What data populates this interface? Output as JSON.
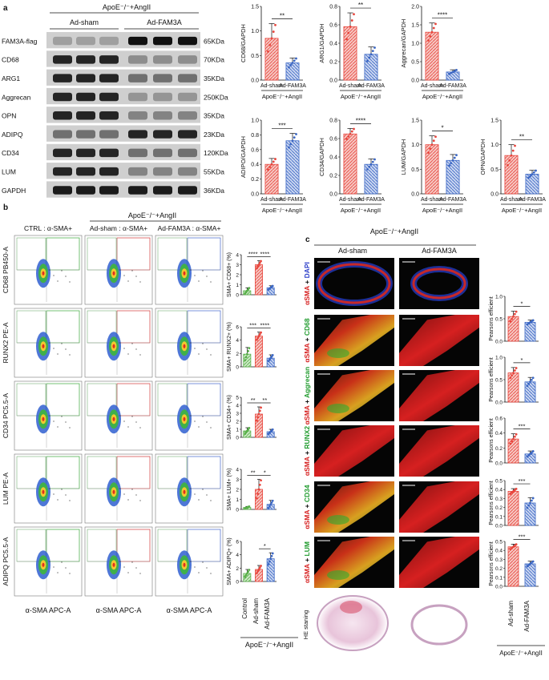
{
  "panel_a": {
    "letter": "a",
    "group_header": "ApoE⁻/⁻+AngII",
    "lanes": [
      "Ad-sham",
      "Ad-FAM3A"
    ],
    "bands": [
      {
        "name": "FAM3A-flag",
        "kda": "65KDa"
      },
      {
        "name": "CD68",
        "kda": "70KDa"
      },
      {
        "name": "ARG1",
        "kda": "35KDa"
      },
      {
        "name": "Aggrecan",
        "kda": "250KDa"
      },
      {
        "name": "OPN",
        "kda": "35KDa"
      },
      {
        "name": "ADIPQ",
        "kda": "23KDa"
      },
      {
        "name": "CD34",
        "kda": "120KDa"
      },
      {
        "name": "LUM",
        "kda": "55KDa"
      },
      {
        "name": "GAPDH",
        "kda": "36KDa"
      }
    ]
  },
  "panel_b": {
    "letter": "b",
    "header": "ApoE⁻/⁻+AngII",
    "col_titles": [
      "CTRL : α-SMA+",
      "Ad-sham : α-SMA+",
      "Ad-FAM3A : α-SMA+"
    ],
    "row_labels": [
      "CD68 PB450-A",
      "RUNX2 PE-A",
      "CD34 PC5.5-A",
      "LUM PE-A",
      "ADIPQ PC5.5-A"
    ],
    "x_label": "α-SMA APC-A",
    "footer": "ApoE⁻/⁻+AngII",
    "categories": [
      "Control",
      "Ad-sham",
      "Ad-FAM3A"
    ]
  },
  "panel_c": {
    "letter": "c",
    "header": "ApoE⁻/⁻+AngII",
    "cols": [
      "Ad-sham",
      "Ad-FAM3A"
    ],
    "row_labels": [
      {
        "red": "αSMA",
        "other": "DAPI",
        "other_color": "#2a3cc8"
      },
      {
        "red": "αSMA",
        "other": "CD68",
        "other_color": "#1e9a2c"
      },
      {
        "red": "αSMA",
        "other": "Aggrecan",
        "other_color": "#1e9a2c"
      },
      {
        "red": "αSMA",
        "other": "RUNX2",
        "other_color": "#1e9a2c"
      },
      {
        "red": "αSMA",
        "other": "CD34",
        "other_color": "#1e9a2c"
      },
      {
        "red": "αSMA",
        "other": "LUM",
        "other_color": "#1e9a2c"
      }
    ],
    "he_label": "HE staning",
    "footer": "ApoE⁻/⁻+AngII",
    "bar_categories": [
      "Ad-sham",
      "Ad-FAM3A"
    ]
  },
  "colors": {
    "sham": "#e8453c",
    "fam3a": "#3a66c4",
    "control": "#59b04a"
  },
  "chart_data": [
    {
      "type": "bar",
      "panel": "a",
      "ylabel": "CD68/GAPDH",
      "categories": [
        "Ad-sham",
        "Ad-FAM3A"
      ],
      "values": [
        0.85,
        0.35
      ],
      "errors": [
        0.3,
        0.1
      ],
      "ylim": [
        0,
        1.5
      ],
      "ticks": [
        "0.0",
        "0.5",
        "1.0",
        "1.5"
      ],
      "sig": "**",
      "xlabel": "ApoE⁻/⁻+AngII"
    },
    {
      "type": "bar",
      "panel": "a",
      "ylabel": "ARG1/GAPDH",
      "categories": [
        "Ad-sham",
        "Ad-FAM3A"
      ],
      "values": [
        0.58,
        0.28
      ],
      "errors": [
        0.15,
        0.08
      ],
      "ylim": [
        0,
        0.8
      ],
      "ticks": [
        "0.0",
        "0.2",
        "0.4",
        "0.6",
        "0.8"
      ],
      "sig": "**",
      "xlabel": "ApoE⁻/⁻+AngII"
    },
    {
      "type": "bar",
      "panel": "a",
      "ylabel": "Aggrecan/GAPDH",
      "categories": [
        "Ad-sham",
        "Ad-FAM3A"
      ],
      "values": [
        1.3,
        0.22
      ],
      "errors": [
        0.25,
        0.06
      ],
      "ylim": [
        0,
        2.0
      ],
      "ticks": [
        "0.0",
        "0.5",
        "1.0",
        "1.5",
        "2.0"
      ],
      "sig": "****",
      "xlabel": "ApoE⁻/⁻+AngII"
    },
    {
      "type": "bar",
      "panel": "a",
      "ylabel": "ADIPO/GAPDH",
      "categories": [
        "Ad-sham",
        "Ad-FAM3A"
      ],
      "values": [
        0.4,
        0.72
      ],
      "errors": [
        0.08,
        0.1
      ],
      "ylim": [
        0,
        1.0
      ],
      "ticks": [
        "0.0",
        "0.2",
        "0.4",
        "0.6",
        "0.8",
        "1.0"
      ],
      "sig": "***",
      "xlabel": "ApoE⁻/⁻+AngII"
    },
    {
      "type": "bar",
      "panel": "a",
      "ylabel": "CD34/GAPDH",
      "categories": [
        "Ad-sham",
        "Ad-FAM3A"
      ],
      "values": [
        0.65,
        0.32
      ],
      "errors": [
        0.06,
        0.06
      ],
      "ylim": [
        0,
        0.8
      ],
      "ticks": [
        "0.0",
        "0.2",
        "0.4",
        "0.6",
        "0.8"
      ],
      "sig": "****",
      "xlabel": "ApoE⁻/⁻+AngII"
    },
    {
      "type": "bar",
      "panel": "a",
      "ylabel": "LUM/GAPDH",
      "categories": [
        "Ad-sham",
        "Ad-FAM3A"
      ],
      "values": [
        1.0,
        0.68
      ],
      "errors": [
        0.18,
        0.12
      ],
      "ylim": [
        0,
        1.5
      ],
      "ticks": [
        "0.0",
        "0.5",
        "1.0",
        "1.5"
      ],
      "sig": "*",
      "xlabel": "ApoE⁻/⁻+AngII"
    },
    {
      "type": "bar",
      "panel": "a",
      "ylabel": "OPN/GAPDH",
      "categories": [
        "Ad-sham",
        "Ad-FAM3A"
      ],
      "values": [
        0.78,
        0.4
      ],
      "errors": [
        0.22,
        0.08
      ],
      "ylim": [
        0,
        1.5
      ],
      "ticks": [
        "0.0",
        "0.5",
        "1.0",
        "1.5"
      ],
      "sig": "**",
      "xlabel": "ApoE⁻/⁻+AngII"
    },
    {
      "type": "bar",
      "panel": "b",
      "ylabel": "SMA+ CD68+ (%)",
      "categories": [
        "Control",
        "Ad-sham",
        "Ad-FAM3A"
      ],
      "values": [
        0.4,
        3.0,
        0.7
      ],
      "errors": [
        0.3,
        0.4,
        0.2
      ],
      "ylim": [
        0,
        4
      ],
      "ticks": [
        "0",
        "1",
        "2",
        "3",
        "4"
      ],
      "sigs": [
        "****",
        "****"
      ]
    },
    {
      "type": "bar",
      "panel": "b",
      "ylabel": "SMA+ RUNX2+ (%)",
      "categories": [
        "Control",
        "Ad-sham",
        "Ad-FAM3A"
      ],
      "values": [
        1.9,
        4.6,
        1.3
      ],
      "errors": [
        1.0,
        0.6,
        0.5
      ],
      "ylim": [
        0,
        6
      ],
      "ticks": [
        "0",
        "2",
        "4",
        "6"
      ],
      "sigs": [
        "***",
        "****"
      ]
    },
    {
      "type": "bar",
      "panel": "b",
      "ylabel": "SMA+ CD34+ (%)",
      "categories": [
        "Control",
        "Ad-sham",
        "Ad-FAM3A"
      ],
      "values": [
        0.8,
        2.9,
        0.7
      ],
      "errors": [
        0.4,
        0.9,
        0.3
      ],
      "ylim": [
        0,
        5
      ],
      "ticks": [
        "0",
        "1",
        "2",
        "3",
        "4",
        "5"
      ],
      "sigs": [
        "**",
        "**"
      ]
    },
    {
      "type": "bar",
      "panel": "b",
      "ylabel": "SMA+ LUM+ (%)",
      "categories": [
        "Control",
        "Ad-sham",
        "Ad-FAM3A"
      ],
      "values": [
        0.2,
        2.0,
        0.5
      ],
      "errors": [
        0.1,
        1.0,
        0.4
      ],
      "ylim": [
        0,
        4
      ],
      "ticks": [
        "0",
        "1",
        "2",
        "3",
        "4"
      ],
      "sigs": [
        "**",
        "*"
      ]
    },
    {
      "type": "bar",
      "panel": "b",
      "ylabel": "SMA+ ADIPQ+ (%)",
      "categories": [
        "Control",
        "Ad-sham",
        "Ad-FAM3A"
      ],
      "values": [
        1.2,
        1.8,
        3.4
      ],
      "errors": [
        0.6,
        0.6,
        0.9
      ],
      "ylim": [
        0,
        6
      ],
      "ticks": [
        "0",
        "2",
        "4",
        "6"
      ],
      "sigs": [
        "",
        "*"
      ]
    },
    {
      "type": "bar",
      "panel": "c",
      "ylabel": "Pearsons efficient",
      "categories": [
        "Ad-sham",
        "Ad-FAM3A"
      ],
      "values": [
        0.55,
        0.42
      ],
      "errors": [
        0.12,
        0.05
      ],
      "ylim": [
        0,
        1.0
      ],
      "ticks": [
        "0.0",
        "0.5",
        "1.0"
      ],
      "sig": "*"
    },
    {
      "type": "bar",
      "panel": "c",
      "ylabel": "Pearsons efficient",
      "categories": [
        "Ad-sham",
        "Ad-FAM3A"
      ],
      "values": [
        0.65,
        0.45
      ],
      "errors": [
        0.12,
        0.1
      ],
      "ylim": [
        0,
        1.0
      ],
      "ticks": [
        "0.0",
        "0.5",
        "1.0"
      ],
      "sig": "*"
    },
    {
      "type": "bar",
      "panel": "c",
      "ylabel": "Pearsons efficient",
      "categories": [
        "Ad-sham",
        "Ad-FAM3A"
      ],
      "values": [
        0.32,
        0.12
      ],
      "errors": [
        0.07,
        0.04
      ],
      "ylim": [
        0,
        0.6
      ],
      "ticks": [
        "0.0",
        "0.2",
        "0.4",
        "0.6"
      ],
      "sig": "***"
    },
    {
      "type": "bar",
      "panel": "c",
      "ylabel": "Pearsons efficient",
      "categories": [
        "Ad-sham",
        "Ad-FAM3A"
      ],
      "values": [
        0.38,
        0.25
      ],
      "errors": [
        0.03,
        0.06
      ],
      "ylim": [
        0,
        0.5
      ],
      "ticks": [
        "0.0",
        "0.1",
        "0.2",
        "0.3",
        "0.4",
        "0.5"
      ],
      "sig": "***"
    },
    {
      "type": "bar",
      "panel": "c",
      "ylabel": "Pearsons efficient",
      "categories": [
        "Ad-sham",
        "Ad-FAM3A"
      ],
      "values": [
        0.44,
        0.25
      ],
      "errors": [
        0.03,
        0.03
      ],
      "ylim": [
        0,
        0.5
      ],
      "ticks": [
        "0.0",
        "0.1",
        "0.2",
        "0.3",
        "0.4",
        "0.5"
      ],
      "sig": "***"
    }
  ]
}
